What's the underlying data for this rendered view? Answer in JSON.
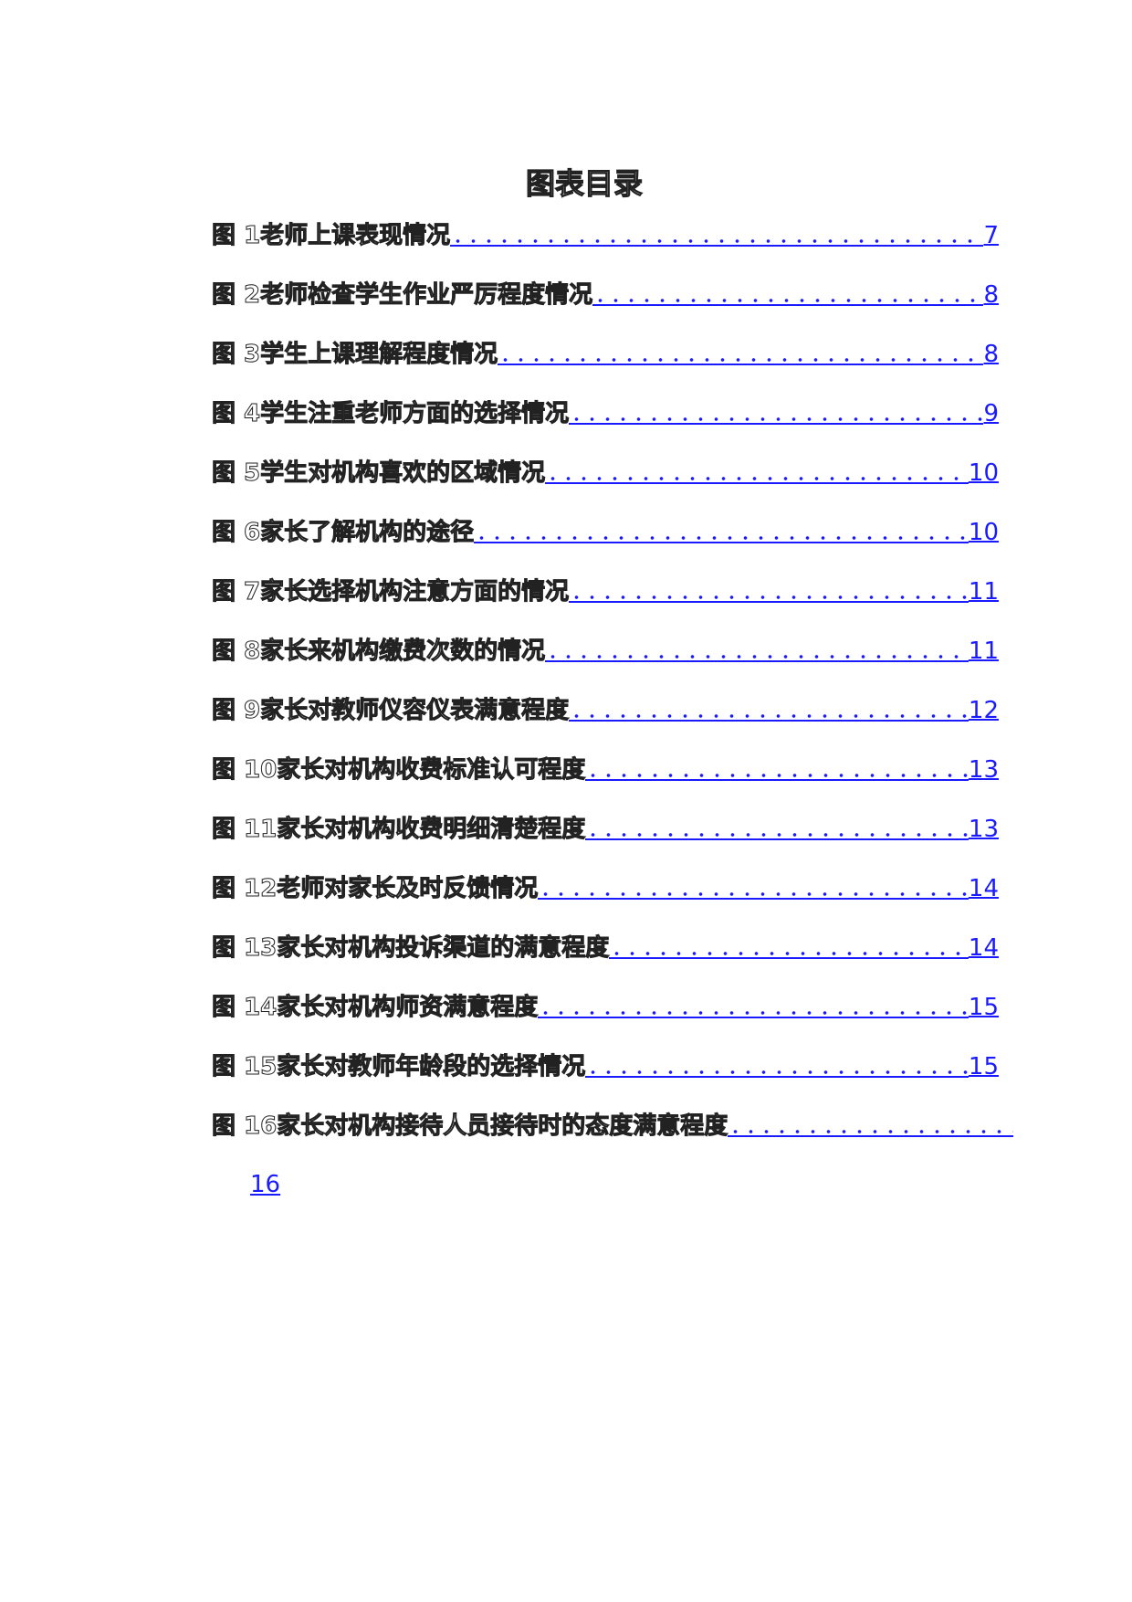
{
  "title": "图表目录",
  "entries": [
    {
      "label": "图  1老师上课表现情况",
      "page": "7"
    },
    {
      "label": "图  2老师检查学生作业严厉程度情况",
      "page": "8"
    },
    {
      "label": "图  3学生上课理解程度情况",
      "page": "8"
    },
    {
      "label": "图  4学生注重老师方面的选择情况",
      "page": "9"
    },
    {
      "label": "图  5学生对机构喜欢的区域情况",
      "page": "10"
    },
    {
      "label": "图  6家长了解机构的途径",
      "page": "10"
    },
    {
      "label": "图  7家长选择机构注意方面的情况",
      "page": "11"
    },
    {
      "label": "图  8家长来机构缴费次数的情况",
      "page": "11"
    },
    {
      "label": "图  9家长对教师仪容仪表满意程度",
      "page": "12"
    },
    {
      "label": "图  10家长对机构收费标准认可程度",
      "page": "13"
    },
    {
      "label": "图  11家长对机构收费明细清楚程度",
      "page": "13"
    },
    {
      "label": "图  12老师对家长及时反馈情况",
      "page": "14"
    },
    {
      "label": "图  13家长对机构投诉渠道的满意程度",
      "page": "14"
    },
    {
      "label": "图  14家长对机构师资满意程度",
      "page": "15"
    },
    {
      "label": "图  15家长对教师年龄段的选择情况",
      "page": "15"
    },
    {
      "label": "图 16家长对机构接待人员接待时的态度满意程度",
      "page": "16"
    }
  ],
  "colors": {
    "link": "#1a1aff",
    "text": "#222222"
  }
}
